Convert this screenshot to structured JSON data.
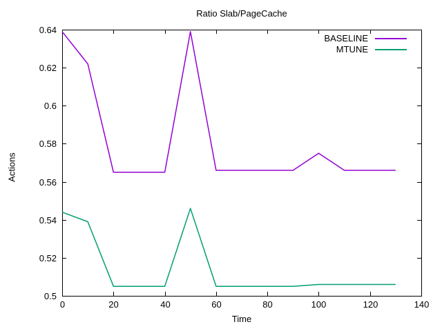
{
  "window": {
    "background": "#ffffff",
    "border_color": "#000000"
  },
  "chart_data": {
    "type": "line",
    "title": "Ratio Slab/PageCache",
    "xlabel": "Time",
    "ylabel": "Actions",
    "xlim": [
      0,
      140
    ],
    "ylim": [
      0.5,
      0.64
    ],
    "grid": false,
    "legend_position": "top-right-inside",
    "xticks": [
      {
        "value": 0,
        "label": "0"
      },
      {
        "value": 20,
        "label": "20"
      },
      {
        "value": 40,
        "label": "40"
      },
      {
        "value": 60,
        "label": "60"
      },
      {
        "value": 80,
        "label": "80"
      },
      {
        "value": 100,
        "label": "100"
      },
      {
        "value": 120,
        "label": "120"
      },
      {
        "value": 140,
        "label": "140"
      }
    ],
    "yticks": [
      {
        "value": 0.5,
        "label": "0.5"
      },
      {
        "value": 0.52,
        "label": "0.52"
      },
      {
        "value": 0.54,
        "label": "0.54"
      },
      {
        "value": 0.56,
        "label": "0.56"
      },
      {
        "value": 0.58,
        "label": "0.58"
      },
      {
        "value": 0.6,
        "label": "0.6"
      },
      {
        "value": 0.62,
        "label": "0.62"
      },
      {
        "value": 0.64,
        "label": "0.64"
      }
    ],
    "x": [
      0,
      10,
      20,
      30,
      40,
      50,
      60,
      70,
      80,
      90,
      100,
      110,
      120,
      130
    ],
    "series": [
      {
        "name": "BASELINE",
        "color": "#9400d3",
        "values": [
          0.639,
          0.622,
          0.565,
          0.565,
          0.565,
          0.639,
          0.566,
          0.566,
          0.566,
          0.566,
          0.575,
          0.566,
          0.566,
          0.566
        ]
      },
      {
        "name": "MTUNE",
        "color": "#009e73",
        "values": [
          0.544,
          0.539,
          0.505,
          0.505,
          0.505,
          0.546,
          0.505,
          0.505,
          0.505,
          0.505,
          0.506,
          0.506,
          0.506,
          0.506
        ]
      }
    ]
  }
}
